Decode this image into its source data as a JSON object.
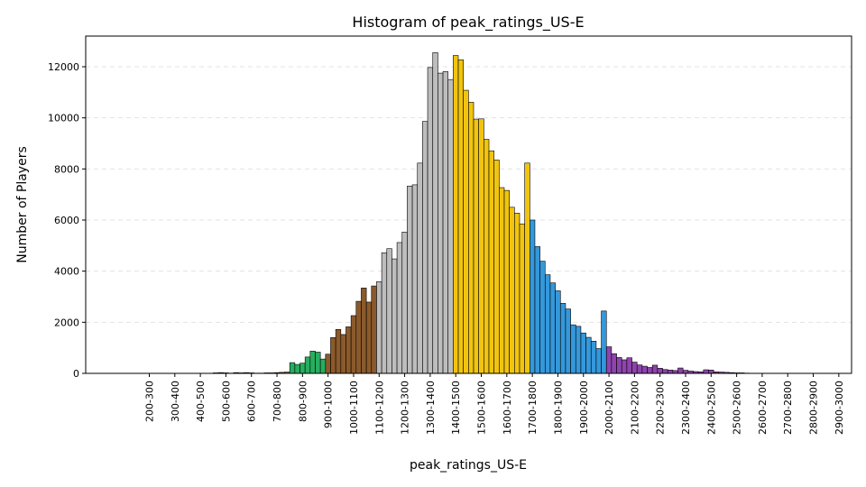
{
  "chart_data": {
    "type": "bar",
    "title": "Histogram of peak_ratings_US-E",
    "xlabel": "peak_ratings_US-E",
    "ylabel": "Number of Players",
    "x_range": [
      1,
      3000
    ],
    "ylim": [
      0,
      13200
    ],
    "y_ticks": [
      0,
      2000,
      4000,
      6000,
      8000,
      10000,
      12000
    ],
    "bin_width": 20,
    "x_tick_positions": [
      250,
      350,
      450,
      550,
      650,
      750,
      850,
      950,
      1050,
      1150,
      1250,
      1350,
      1450,
      1550,
      1650,
      1750,
      1850,
      1950,
      2050,
      2150,
      2250,
      2350,
      2450,
      2550,
      2650,
      2750,
      2850,
      2950
    ],
    "x_tick_labels": [
      "200-300",
      "300-400",
      "400-500",
      "500-600",
      "600-700",
      "700-800",
      "800-900",
      "900-1000",
      "1000-1100",
      "1100-1200",
      "1200-1300",
      "1300-1400",
      "1400-1500",
      "1500-1600",
      "1600-1700",
      "1700-1800",
      "1800-1900",
      "1900-2000",
      "2000-2100",
      "2100-2200",
      "2200-2300",
      "2300-2400",
      "2400-2500",
      "2500-2600",
      "2600-2700",
      "2700-2800",
      "2800-2900",
      "2900-3000"
    ],
    "grid": "y-dashed",
    "tiers": [
      {
        "from": 0,
        "to": 500,
        "color": "#bdbdbd"
      },
      {
        "from": 500,
        "to": 800,
        "color": "#8b5a2b"
      },
      {
        "from": 800,
        "to": 950,
        "color": "#27ae60"
      },
      {
        "from": 950,
        "to": 1150,
        "color": "#8b5a2b"
      },
      {
        "from": 1150,
        "to": 1450,
        "color": "#bdbdbd"
      },
      {
        "from": 1450,
        "to": 1750,
        "color": "#f1c40f"
      },
      {
        "from": 1750,
        "to": 2050,
        "color": "#3498db"
      },
      {
        "from": 2050,
        "to": 3000,
        "color": "#8e44ad"
      }
    ],
    "bins": [
      [
        510,
        20
      ],
      [
        530,
        30
      ],
      [
        550,
        20
      ],
      [
        570,
        10
      ],
      [
        590,
        30
      ],
      [
        610,
        20
      ],
      [
        630,
        30
      ],
      [
        650,
        20
      ],
      [
        670,
        10
      ],
      [
        690,
        10
      ],
      [
        710,
        20
      ],
      [
        730,
        20
      ],
      [
        750,
        30
      ],
      [
        770,
        40
      ],
      [
        790,
        50
      ],
      [
        810,
        420
      ],
      [
        830,
        350
      ],
      [
        850,
        400
      ],
      [
        870,
        640
      ],
      [
        890,
        870
      ],
      [
        910,
        830
      ],
      [
        930,
        560
      ],
      [
        950,
        750
      ],
      [
        970,
        1400
      ],
      [
        990,
        1720
      ],
      [
        1010,
        1520
      ],
      [
        1030,
        1820
      ],
      [
        1050,
        2260
      ],
      [
        1070,
        2820
      ],
      [
        1090,
        3340
      ],
      [
        1110,
        2790
      ],
      [
        1130,
        3420
      ],
      [
        1150,
        3590
      ],
      [
        1170,
        4720
      ],
      [
        1190,
        4880
      ],
      [
        1210,
        4480
      ],
      [
        1230,
        5120
      ],
      [
        1250,
        5530
      ],
      [
        1270,
        7330
      ],
      [
        1290,
        7380
      ],
      [
        1310,
        8230
      ],
      [
        1330,
        9860
      ],
      [
        1350,
        11970
      ],
      [
        1370,
        12550
      ],
      [
        1390,
        11750
      ],
      [
        1410,
        11810
      ],
      [
        1430,
        11500
      ],
      [
        1450,
        12440
      ],
      [
        1470,
        12270
      ],
      [
        1490,
        11080
      ],
      [
        1510,
        10610
      ],
      [
        1530,
        9950
      ],
      [
        1550,
        9960
      ],
      [
        1570,
        9160
      ],
      [
        1590,
        8710
      ],
      [
        1610,
        8350
      ],
      [
        1630,
        7270
      ],
      [
        1650,
        7160
      ],
      [
        1670,
        6500
      ],
      [
        1690,
        6270
      ],
      [
        1710,
        5850
      ],
      [
        1730,
        8230
      ],
      [
        1750,
        6000
      ],
      [
        1770,
        4960
      ],
      [
        1790,
        4390
      ],
      [
        1810,
        3860
      ],
      [
        1830,
        3540
      ],
      [
        1850,
        3230
      ],
      [
        1870,
        2740
      ],
      [
        1890,
        2520
      ],
      [
        1910,
        1900
      ],
      [
        1930,
        1840
      ],
      [
        1950,
        1580
      ],
      [
        1970,
        1410
      ],
      [
        1990,
        1260
      ],
      [
        2010,
        970
      ],
      [
        2030,
        2440
      ],
      [
        2050,
        1040
      ],
      [
        2070,
        770
      ],
      [
        2090,
        620
      ],
      [
        2110,
        530
      ],
      [
        2130,
        610
      ],
      [
        2150,
        440
      ],
      [
        2170,
        330
      ],
      [
        2190,
        280
      ],
      [
        2210,
        230
      ],
      [
        2230,
        320
      ],
      [
        2250,
        200
      ],
      [
        2270,
        150
      ],
      [
        2290,
        130
      ],
      [
        2310,
        110
      ],
      [
        2330,
        210
      ],
      [
        2350,
        120
      ],
      [
        2370,
        90
      ],
      [
        2390,
        70
      ],
      [
        2410,
        60
      ],
      [
        2430,
        140
      ],
      [
        2450,
        130
      ],
      [
        2470,
        60
      ],
      [
        2490,
        50
      ],
      [
        2510,
        40
      ],
      [
        2530,
        30
      ],
      [
        2550,
        20
      ],
      [
        2570,
        20
      ],
      [
        2590,
        10
      ]
    ]
  }
}
